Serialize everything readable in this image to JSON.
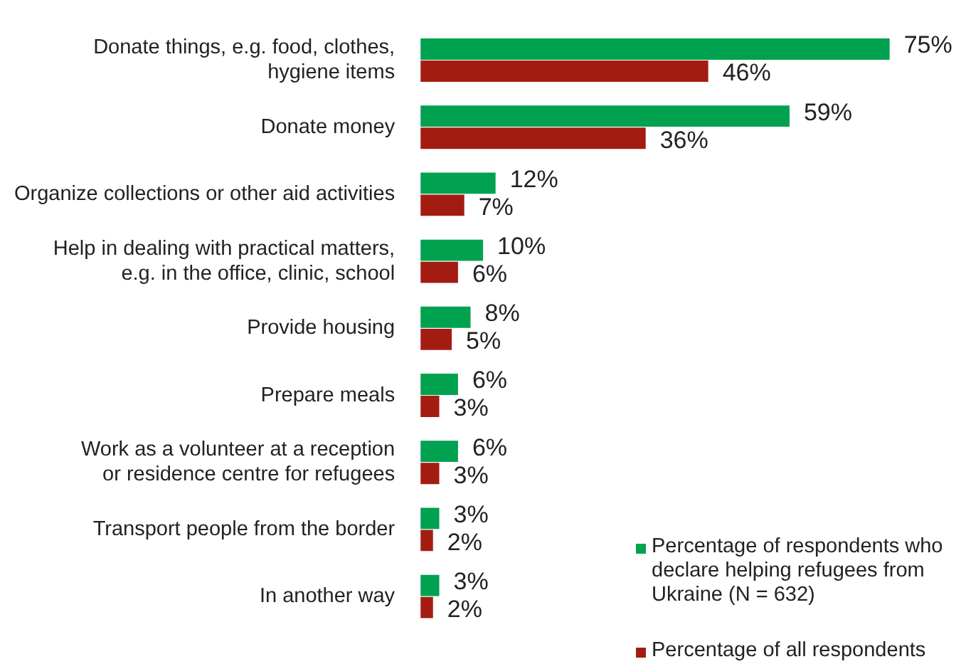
{
  "chart_data": {
    "type": "bar",
    "orientation": "horizontal",
    "legend": "bottom right",
    "categories": [
      "Donate things, e.g. food, clothes,\nhygiene items",
      "Donate money",
      "Organize collections or other aid activities",
      "Help in dealing with practical matters,\ne.g. in the office, clinic, school",
      "Provide housing",
      "Prepare meals",
      "Work as a volunteer at a reception\nor residence centre for refugees",
      "Transport people from the border",
      "In another way"
    ],
    "series": [
      {
        "name": "Percentage of respondents who declare helping refugees from Ukraine (N = 632)",
        "color": "#00a14f",
        "values": [
          75,
          59,
          12,
          10,
          8,
          6,
          6,
          3,
          3
        ],
        "value_labels": [
          "75%",
          "59%",
          "12%",
          "10%",
          "8%",
          "6%",
          "6%",
          "3%",
          "3%"
        ]
      },
      {
        "name": "Percentage of all respondents",
        "color": "#a31c12",
        "values": [
          46,
          36,
          7,
          6,
          5,
          3,
          3,
          2,
          2
        ],
        "value_labels": [
          "46%",
          "36%",
          "7%",
          "6%",
          "5%",
          "3%",
          "3%",
          "2%",
          "2%"
        ]
      }
    ]
  }
}
